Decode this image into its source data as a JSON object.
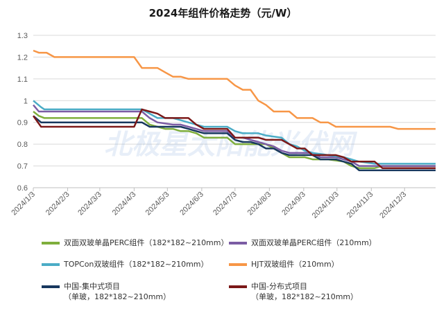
{
  "chart_data": {
    "type": "line",
    "title": "2024年组件价格走势（元/W）",
    "watermark": "北极星太阳能光伏网",
    "ylim": [
      0.6,
      1.3
    ],
    "yticks": [
      "0.6",
      "0.7",
      "0.8",
      "0.9",
      "1",
      "1.1",
      "1.2",
      "1.3"
    ],
    "grid": true,
    "legend_position": "bottom",
    "x_range": [
      "2024/1/3",
      "2024/12/31"
    ],
    "xticks": [
      "2024/1/3",
      "2024/2/3",
      "2024/3/3",
      "2024/4/3",
      "2024/5/3",
      "2024/6/3",
      "2024/7/3",
      "2024/8/3",
      "2024/9/3",
      "2024/10/3",
      "2024/11/3",
      "2024/12/3"
    ],
    "series": [
      {
        "name": "双面双玻单晶PERC组件（182*182~210mm）",
        "color": "#7fae3c",
        "points": [
          [
            "2024/1/3",
            0.95
          ],
          [
            "2024/1/8",
            0.93
          ],
          [
            "2024/1/13",
            0.92
          ],
          [
            "2024/4/10",
            0.92
          ],
          [
            "2024/4/17",
            0.89
          ],
          [
            "2024/4/24",
            0.88
          ],
          [
            "2024/5/1",
            0.87
          ],
          [
            "2024/5/8",
            0.87
          ],
          [
            "2024/5/15",
            0.86
          ],
          [
            "2024/5/22",
            0.86
          ],
          [
            "2024/5/29",
            0.85
          ],
          [
            "2024/6/5",
            0.83
          ],
          [
            "2024/6/19",
            0.83
          ],
          [
            "2024/6/26",
            0.83
          ],
          [
            "2024/7/3",
            0.8
          ],
          [
            "2024/7/31",
            0.8
          ],
          [
            "2024/8/7",
            0.78
          ],
          [
            "2024/8/14",
            0.76
          ],
          [
            "2024/8/21",
            0.74
          ],
          [
            "2024/9/4",
            0.74
          ],
          [
            "2024/9/11",
            0.73
          ],
          [
            "2024/9/25",
            0.73
          ],
          [
            "2024/10/9",
            0.72
          ],
          [
            "2024/10/16",
            0.7
          ],
          [
            "2024/10/23",
            0.69
          ],
          [
            "2024/11/6",
            0.69
          ],
          [
            "2024/11/13",
            0.7
          ],
          [
            "2024/12/31",
            0.7
          ]
        ]
      },
      {
        "name": "双面双玻单晶PERC组件（210mm）",
        "color": "#7b5ca4",
        "points": [
          [
            "2024/1/3",
            0.98
          ],
          [
            "2024/1/8",
            0.95
          ],
          [
            "2024/4/10",
            0.95
          ],
          [
            "2024/4/17",
            0.92
          ],
          [
            "2024/4/24",
            0.9
          ],
          [
            "2024/5/8",
            0.89
          ],
          [
            "2024/5/15",
            0.89
          ],
          [
            "2024/5/29",
            0.87
          ],
          [
            "2024/6/5",
            0.86
          ],
          [
            "2024/6/19",
            0.86
          ],
          [
            "2024/6/26",
            0.86
          ],
          [
            "2024/7/3",
            0.83
          ],
          [
            "2024/7/10",
            0.83
          ],
          [
            "2024/7/24",
            0.81
          ],
          [
            "2024/8/7",
            0.79
          ],
          [
            "2024/8/14",
            0.77
          ],
          [
            "2024/8/21",
            0.76
          ],
          [
            "2024/9/11",
            0.76
          ],
          [
            "2024/9/18",
            0.74
          ],
          [
            "2024/10/2",
            0.74
          ],
          [
            "2024/10/9",
            0.73
          ],
          [
            "2024/10/16",
            0.72
          ],
          [
            "2024/10/23",
            0.7
          ],
          [
            "2024/12/31",
            0.7
          ]
        ]
      },
      {
        "name": "TOPCon双玻组件（182*182~210mm）",
        "color": "#4bacc6",
        "points": [
          [
            "2024/1/3",
            1.0
          ],
          [
            "2024/1/10",
            0.97
          ],
          [
            "2024/1/13",
            0.96
          ],
          [
            "2024/4/10",
            0.96
          ],
          [
            "2024/4/17",
            0.94
          ],
          [
            "2024/4/24",
            0.92
          ],
          [
            "2024/5/8",
            0.92
          ],
          [
            "2024/5/15",
            0.91
          ],
          [
            "2024/5/29",
            0.89
          ],
          [
            "2024/6/5",
            0.88
          ],
          [
            "2024/6/19",
            0.88
          ],
          [
            "2024/6/26",
            0.88
          ],
          [
            "2024/7/3",
            0.86
          ],
          [
            "2024/7/10",
            0.85
          ],
          [
            "2024/7/24",
            0.85
          ],
          [
            "2024/7/31",
            0.84
          ],
          [
            "2024/8/14",
            0.83
          ],
          [
            "2024/8/21",
            0.8
          ],
          [
            "2024/8/28",
            0.79
          ],
          [
            "2024/9/4",
            0.77
          ],
          [
            "2024/9/11",
            0.76
          ],
          [
            "2024/9/25",
            0.75
          ],
          [
            "2024/10/9",
            0.74
          ],
          [
            "2024/10/16",
            0.73
          ],
          [
            "2024/10/23",
            0.72
          ],
          [
            "2024/11/6",
            0.71
          ],
          [
            "2024/11/13",
            0.71
          ],
          [
            "2024/12/31",
            0.71
          ]
        ]
      },
      {
        "name": "HJT双玻组件（210mm）",
        "color": "#f79646",
        "points": [
          [
            "2024/1/3",
            1.23
          ],
          [
            "2024/1/8",
            1.22
          ],
          [
            "2024/1/15",
            1.22
          ],
          [
            "2024/1/22",
            1.2
          ],
          [
            "2024/4/3",
            1.2
          ],
          [
            "2024/4/10",
            1.15
          ],
          [
            "2024/4/24",
            1.15
          ],
          [
            "2024/5/1",
            1.13
          ],
          [
            "2024/5/8",
            1.11
          ],
          [
            "2024/5/15",
            1.11
          ],
          [
            "2024/5/22",
            1.1
          ],
          [
            "2024/6/19",
            1.1
          ],
          [
            "2024/6/26",
            1.1
          ],
          [
            "2024/7/3",
            1.07
          ],
          [
            "2024/7/10",
            1.05
          ],
          [
            "2024/7/17",
            1.05
          ],
          [
            "2024/7/24",
            1.0
          ],
          [
            "2024/7/31",
            0.98
          ],
          [
            "2024/8/7",
            0.95
          ],
          [
            "2024/8/21",
            0.95
          ],
          [
            "2024/8/28",
            0.92
          ],
          [
            "2024/9/11",
            0.92
          ],
          [
            "2024/9/18",
            0.9
          ],
          [
            "2024/9/25",
            0.9
          ],
          [
            "2024/10/2",
            0.88
          ],
          [
            "2024/11/20",
            0.88
          ],
          [
            "2024/11/27",
            0.87
          ],
          [
            "2024/12/31",
            0.87
          ]
        ]
      },
      {
        "name": "中国-集中式项目\n（单玻，182*182~210mm）",
        "color": "#17375e",
        "points": [
          [
            "2024/1/3",
            0.93
          ],
          [
            "2024/1/10",
            0.9
          ],
          [
            "2024/4/10",
            0.9
          ],
          [
            "2024/4/17",
            0.88
          ],
          [
            "2024/5/15",
            0.88
          ],
          [
            "2024/5/22",
            0.87
          ],
          [
            "2024/5/29",
            0.86
          ],
          [
            "2024/6/5",
            0.85
          ],
          [
            "2024/6/19",
            0.85
          ],
          [
            "2024/6/26",
            0.85
          ],
          [
            "2024/7/3",
            0.82
          ],
          [
            "2024/7/10",
            0.81
          ],
          [
            "2024/7/17",
            0.81
          ],
          [
            "2024/7/24",
            0.8
          ],
          [
            "2024/7/31",
            0.78
          ],
          [
            "2024/8/7",
            0.78
          ],
          [
            "2024/8/14",
            0.76
          ],
          [
            "2024/8/21",
            0.75
          ],
          [
            "2024/9/11",
            0.75
          ],
          [
            "2024/9/18",
            0.73
          ],
          [
            "2024/10/2",
            0.73
          ],
          [
            "2024/10/9",
            0.72
          ],
          [
            "2024/10/16",
            0.71
          ],
          [
            "2024/10/23",
            0.68
          ],
          [
            "2024/12/31",
            0.68
          ]
        ]
      },
      {
        "name": "中国-分布式项目\n（单玻，182*182~210mm）",
        "color": "#7b1818",
        "points": [
          [
            "2024/1/3",
            0.93
          ],
          [
            "2024/1/10",
            0.88
          ],
          [
            "2024/4/3",
            0.88
          ],
          [
            "2024/4/10",
            0.96
          ],
          [
            "2024/4/17",
            0.95
          ],
          [
            "2024/4/24",
            0.94
          ],
          [
            "2024/5/1",
            0.92
          ],
          [
            "2024/5/15",
            0.92
          ],
          [
            "2024/5/22",
            0.92
          ],
          [
            "2024/5/29",
            0.89
          ],
          [
            "2024/6/5",
            0.87
          ],
          [
            "2024/6/19",
            0.87
          ],
          [
            "2024/6/26",
            0.87
          ],
          [
            "2024/7/3",
            0.83
          ],
          [
            "2024/7/24",
            0.83
          ],
          [
            "2024/7/31",
            0.82
          ],
          [
            "2024/8/14",
            0.82
          ],
          [
            "2024/8/21",
            0.8
          ],
          [
            "2024/8/28",
            0.78
          ],
          [
            "2024/9/4",
            0.78
          ],
          [
            "2024/9/11",
            0.75
          ],
          [
            "2024/9/18",
            0.75
          ],
          [
            "2024/10/2",
            0.75
          ],
          [
            "2024/10/9",
            0.74
          ],
          [
            "2024/10/16",
            0.72
          ],
          [
            "2024/10/30",
            0.72
          ],
          [
            "2024/11/6",
            0.72
          ],
          [
            "2024/11/13",
            0.69
          ],
          [
            "2024/12/31",
            0.69
          ]
        ]
      }
    ]
  }
}
